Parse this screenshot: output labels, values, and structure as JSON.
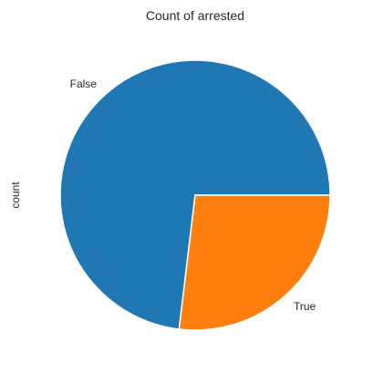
{
  "chart_data": {
    "type": "pie",
    "title": "Count of arrested",
    "ylabel": "count",
    "categories": [
      "False",
      "True"
    ],
    "values": [
      0.731,
      0.269
    ],
    "colors": [
      "#1f77b4",
      "#ff7f0e"
    ],
    "start_angle_deg": 0,
    "direction": "counterclockwise",
    "legend": "none"
  }
}
